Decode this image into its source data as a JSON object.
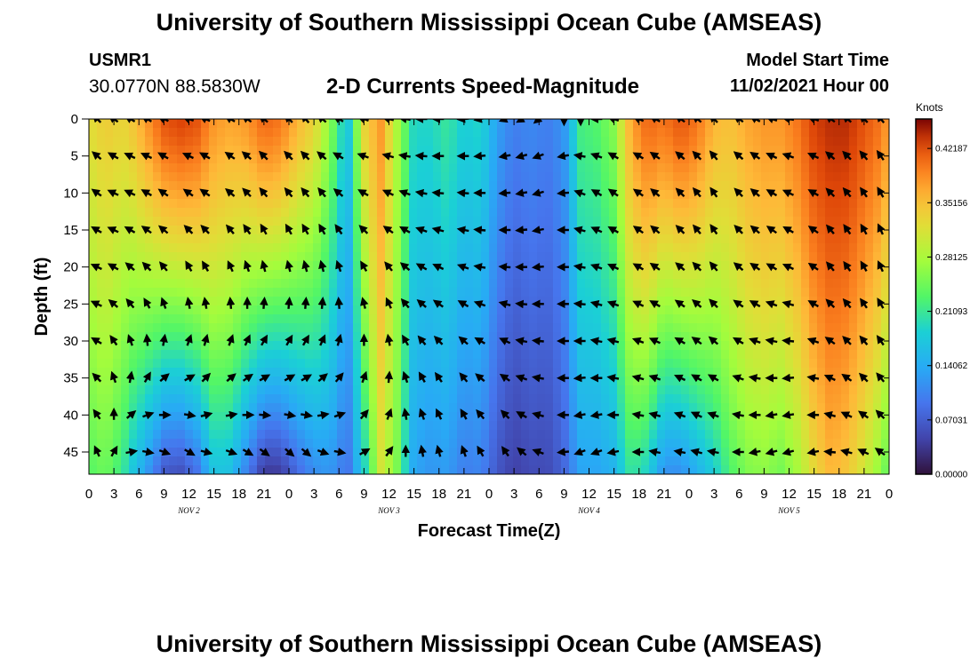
{
  "header": {
    "title": "University of Southern Mississippi Ocean Cube (AMSEAS)",
    "station": "USMR1",
    "coords": "30.0770N  88.5830W",
    "subtitle": "2-D Currents Speed-Magnitude",
    "model_start_label": "Model Start Time",
    "model_start_value": "11/02/2021 Hour 00"
  },
  "footer": {
    "title": "University of Southern Mississippi Ocean Cube (AMSEAS)"
  },
  "chart_data": {
    "type": "heatmap",
    "title": "2-D Currents Speed-Magnitude",
    "xlabel": "Forecast Time(Z)",
    "ylabel": "Depth (ft)",
    "x_ticks": [
      "0",
      "3",
      "6",
      "9",
      "12",
      "15",
      "18",
      "21",
      "0",
      "3",
      "6",
      "9",
      "12",
      "15",
      "18",
      "21",
      "0",
      "3",
      "6",
      "9",
      "12",
      "15",
      "18",
      "21",
      "0",
      "3",
      "6",
      "9",
      "12",
      "15",
      "18",
      "21",
      "0"
    ],
    "x_hours": [
      0,
      3,
      6,
      9,
      12,
      15,
      18,
      21,
      24,
      27,
      30,
      33,
      36,
      39,
      42,
      45,
      48,
      51,
      54,
      57,
      60,
      63,
      66,
      69,
      72,
      75,
      78,
      81,
      84,
      87,
      90,
      93,
      96
    ],
    "xlim": [
      0,
      96
    ],
    "day_labels": [
      {
        "text": "NOV 2",
        "hour": 12
      },
      {
        "text": "NOV 3",
        "hour": 36
      },
      {
        "text": "NOV 4",
        "hour": 60
      },
      {
        "text": "NOV 5",
        "hour": 84
      }
    ],
    "y_ticks": [
      "0",
      "5",
      "10",
      "15",
      "20",
      "25",
      "30",
      "35",
      "40",
      "45"
    ],
    "y_values": [
      0,
      5,
      10,
      15,
      20,
      25,
      30,
      35,
      40,
      45
    ],
    "ylim": [
      0,
      48
    ],
    "colorbar": {
      "label": "Knots",
      "ticks": [
        "0.42187",
        "0.35156",
        "0.28125",
        "0.21093",
        "0.14062",
        "0.07031",
        "0.00000"
      ],
      "tick_values": [
        0.42187,
        0.35156,
        0.28125,
        0.21093,
        0.14062,
        0.07031,
        0.0
      ],
      "range": [
        0,
        0.46
      ]
    },
    "speed_profile_hours": [
      0,
      2,
      4,
      5,
      7,
      9,
      11,
      13,
      15,
      17,
      19,
      21,
      23,
      25,
      27,
      29,
      31,
      33,
      35,
      37,
      39,
      41,
      43,
      45,
      47,
      49,
      51,
      53,
      55,
      57,
      59,
      61,
      63,
      65,
      67,
      69,
      71,
      73,
      75,
      77,
      79,
      81,
      83,
      85,
      87,
      89,
      91,
      93,
      95,
      96
    ],
    "speed_surface": [
      0.32,
      0.34,
      0.33,
      0.34,
      0.38,
      0.42,
      0.43,
      0.42,
      0.38,
      0.37,
      0.38,
      0.41,
      0.4,
      0.36,
      0.33,
      0.26,
      0.16,
      0.33,
      0.38,
      0.28,
      0.19,
      0.19,
      0.21,
      0.18,
      0.19,
      0.13,
      0.1,
      0.11,
      0.1,
      0.12,
      0.22,
      0.23,
      0.26,
      0.37,
      0.41,
      0.4,
      0.42,
      0.4,
      0.36,
      0.35,
      0.37,
      0.38,
      0.38,
      0.4,
      0.43,
      0.44,
      0.44,
      0.42,
      0.4,
      0.37
    ],
    "speed_depth_decay": [
      0.78,
      0.78,
      0.72,
      0.62,
      0.45,
      0.3,
      0.28,
      0.35,
      0.55,
      0.55,
      0.4,
      0.25,
      0.26,
      0.38,
      0.48,
      0.6,
      0.7,
      0.65,
      0.85,
      0.92,
      0.8,
      0.75,
      0.72,
      0.7,
      0.7,
      0.7,
      0.7,
      0.72,
      0.75,
      0.8,
      0.72,
      0.7,
      0.68,
      0.65,
      0.55,
      0.42,
      0.4,
      0.48,
      0.6,
      0.72,
      0.75,
      0.75,
      0.72,
      0.75,
      0.8,
      0.85,
      0.82,
      0.78,
      0.72,
      0.7
    ],
    "vector_hours": [
      1,
      3,
      5,
      7,
      9,
      12,
      14,
      17,
      19,
      21,
      24,
      26,
      28,
      30,
      33,
      36,
      38,
      40,
      42,
      45,
      47,
      50,
      52,
      54,
      57,
      59,
      61,
      63,
      66,
      68,
      71,
      73,
      75,
      78,
      80,
      82,
      84,
      87,
      89,
      91,
      93,
      95
    ],
    "vector_depths": [
      0,
      5,
      10,
      15,
      20,
      25,
      30,
      35,
      40,
      45
    ],
    "vector_angle_deg": [
      [
        225,
        220,
        215,
        210,
        205,
        205,
        210,
        225,
        235,
        245
      ],
      [
        215,
        210,
        205,
        205,
        210,
        220,
        235,
        250,
        270,
        300
      ],
      [
        210,
        205,
        205,
        210,
        220,
        230,
        250,
        280,
        320,
        350
      ],
      [
        210,
        205,
        210,
        215,
        225,
        240,
        265,
        300,
        340,
        10
      ],
      [
        205,
        210,
        215,
        220,
        230,
        250,
        280,
        320,
        0,
        20
      ],
      [
        200,
        205,
        215,
        225,
        240,
        260,
        290,
        330,
        10,
        30
      ],
      [
        205,
        210,
        215,
        225,
        240,
        260,
        285,
        315,
        345,
        15
      ],
      [
        210,
        215,
        220,
        230,
        245,
        265,
        290,
        320,
        350,
        20
      ],
      [
        215,
        220,
        225,
        235,
        250,
        270,
        295,
        325,
        0,
        30
      ],
      [
        220,
        225,
        230,
        240,
        255,
        275,
        300,
        330,
        5,
        35
      ],
      [
        225,
        225,
        230,
        240,
        255,
        275,
        300,
        330,
        10,
        40
      ],
      [
        230,
        225,
        230,
        240,
        255,
        275,
        300,
        330,
        10,
        40
      ],
      [
        220,
        220,
        230,
        240,
        255,
        275,
        295,
        320,
        350,
        20
      ],
      [
        210,
        210,
        220,
        235,
        250,
        265,
        285,
        310,
        340,
        10
      ],
      [
        200,
        200,
        210,
        225,
        240,
        255,
        270,
        290,
        310,
        330
      ],
      [
        195,
        195,
        205,
        215,
        230,
        245,
        260,
        275,
        290,
        305
      ],
      [
        190,
        190,
        200,
        210,
        220,
        230,
        240,
        250,
        260,
        270
      ],
      [
        180,
        185,
        190,
        200,
        210,
        220,
        230,
        240,
        250,
        260
      ],
      [
        180,
        180,
        185,
        195,
        205,
        215,
        225,
        235,
        245,
        255
      ],
      [
        175,
        180,
        185,
        190,
        200,
        210,
        220,
        230,
        240,
        250
      ],
      [
        170,
        175,
        180,
        185,
        190,
        200,
        210,
        220,
        230,
        240
      ],
      [
        160,
        170,
        175,
        180,
        185,
        195,
        205,
        215,
        225,
        235
      ],
      [
        150,
        165,
        170,
        175,
        180,
        185,
        190,
        200,
        210,
        220
      ],
      [
        140,
        160,
        165,
        170,
        175,
        180,
        185,
        190,
        195,
        200
      ],
      [
        90,
        170,
        175,
        180,
        180,
        180,
        180,
        180,
        180,
        175
      ],
      [
        90,
        190,
        200,
        195,
        190,
        185,
        180,
        175,
        170,
        160
      ],
      [
        180,
        200,
        210,
        205,
        200,
        195,
        190,
        180,
        170,
        160
      ],
      [
        200,
        210,
        215,
        210,
        205,
        200,
        195,
        190,
        180,
        170
      ],
      [
        205,
        210,
        215,
        215,
        210,
        205,
        200,
        195,
        190,
        180
      ],
      [
        210,
        215,
        220,
        220,
        215,
        210,
        205,
        200,
        195,
        190
      ],
      [
        215,
        220,
        225,
        225,
        220,
        215,
        210,
        205,
        200,
        190
      ],
      [
        220,
        225,
        230,
        230,
        225,
        220,
        215,
        210,
        205,
        195
      ],
      [
        225,
        230,
        235,
        235,
        230,
        225,
        220,
        210,
        200,
        190
      ],
      [
        215,
        220,
        225,
        225,
        220,
        215,
        210,
        200,
        190,
        180
      ],
      [
        210,
        215,
        220,
        220,
        215,
        210,
        200,
        190,
        180,
        170
      ],
      [
        200,
        205,
        210,
        215,
        210,
        200,
        190,
        180,
        170,
        165
      ],
      [
        190,
        200,
        205,
        210,
        205,
        195,
        185,
        175,
        170,
        165
      ],
      [
        200,
        205,
        210,
        215,
        215,
        210,
        200,
        190,
        180,
        170
      ],
      [
        215,
        220,
        225,
        230,
        230,
        225,
        215,
        205,
        195,
        185
      ],
      [
        220,
        225,
        230,
        235,
        235,
        230,
        225,
        215,
        205,
        195
      ],
      [
        225,
        230,
        235,
        240,
        240,
        235,
        230,
        225,
        215,
        205
      ],
      [
        230,
        235,
        240,
        245,
        245,
        240,
        235,
        230,
        225,
        215
      ]
    ]
  }
}
